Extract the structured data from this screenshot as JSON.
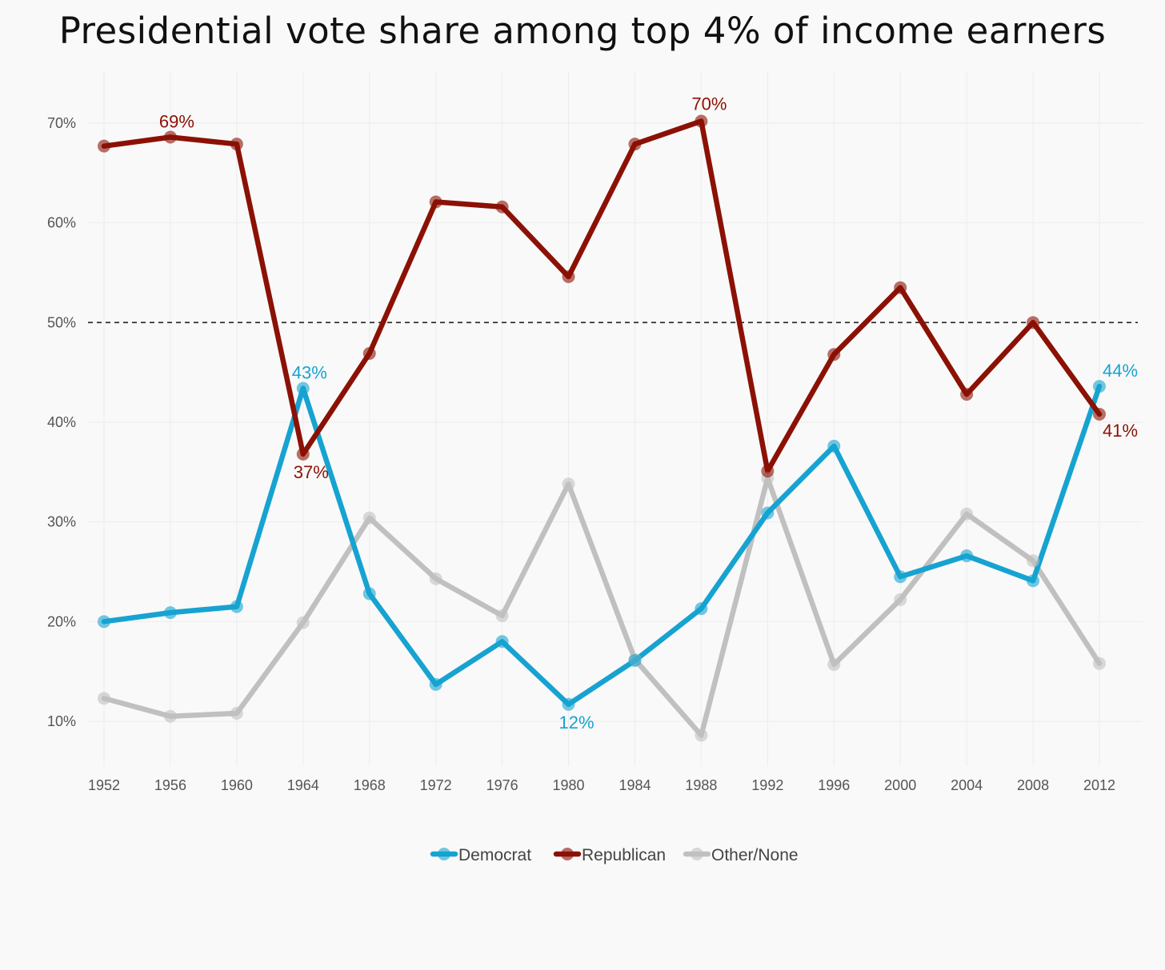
{
  "chart_data": {
    "type": "line",
    "title": "Presidential vote share among top 4% of income earners",
    "xlabel": "",
    "ylabel": "",
    "x": [
      1952,
      1956,
      1960,
      1964,
      1968,
      1972,
      1976,
      1980,
      1984,
      1988,
      1992,
      1996,
      2000,
      2004,
      2008,
      2012
    ],
    "xticks": [
      "1952",
      "1956",
      "1960",
      "1964",
      "1968",
      "1972",
      "1976",
      "1980",
      "1984",
      "1988",
      "1992",
      "1996",
      "2000",
      "2004",
      "2008",
      "2012"
    ],
    "yticks": [
      {
        "value": 10,
        "label": "10%"
      },
      {
        "value": 20,
        "label": "20%"
      },
      {
        "value": 30,
        "label": "30%"
      },
      {
        "value": 40,
        "label": "40%"
      },
      {
        "value": 50,
        "label": "50%"
      },
      {
        "value": 60,
        "label": "60%"
      },
      {
        "value": 70,
        "label": "70%"
      }
    ],
    "ylim": [
      5,
      75
    ],
    "reference_line": {
      "value": 50,
      "style": "dashed"
    },
    "grid": true,
    "legend_position": "bottom",
    "series": [
      {
        "name": "Democrat",
        "color": "#16a3d1",
        "values": [
          20.0,
          20.9,
          21.5,
          43.4,
          22.8,
          13.7,
          18.0,
          11.7,
          16.1,
          21.3,
          30.9,
          37.6,
          24.5,
          26.6,
          24.1,
          43.6
        ]
      },
      {
        "name": "Republican",
        "color": "#8b1105",
        "values": [
          67.7,
          68.6,
          67.9,
          36.8,
          46.9,
          62.1,
          61.6,
          54.6,
          67.9,
          70.2,
          35.1,
          46.8,
          53.5,
          42.8,
          50.0,
          40.8
        ]
      },
      {
        "name": "Other/None",
        "color": "#c0c0c0",
        "values": [
          12.3,
          10.5,
          10.8,
          19.9,
          30.4,
          24.3,
          20.6,
          33.8,
          16.2,
          8.6,
          34.4,
          15.7,
          22.2,
          30.8,
          26.1,
          15.8
        ]
      }
    ],
    "annotations": [
      {
        "text": "69%",
        "series": "Republican",
        "x": 1956,
        "y": 68.6,
        "position": "above"
      },
      {
        "text": "70%",
        "series": "Republican",
        "x": 1988,
        "y": 70.2,
        "position": "above"
      },
      {
        "text": "37%",
        "series": "Republican",
        "x": 1964,
        "y": 36.8,
        "position": "below"
      },
      {
        "text": "41%",
        "series": "Republican",
        "x": 2012,
        "y": 40.8,
        "position": "below-right"
      },
      {
        "text": "43%",
        "series": "Democrat",
        "x": 1964,
        "y": 43.4,
        "position": "above"
      },
      {
        "text": "12%",
        "series": "Democrat",
        "x": 1980,
        "y": 11.7,
        "position": "below"
      },
      {
        "text": "44%",
        "series": "Democrat",
        "x": 2012,
        "y": 43.6,
        "position": "above-right"
      }
    ]
  }
}
